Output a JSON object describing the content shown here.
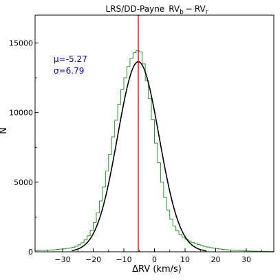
{
  "chart_data": {
    "type": "histogram",
    "title_parts": {
      "main": "LRS/DD-Payne",
      "term1": "RV",
      "term1_sub": "b",
      "minus": "−",
      "term2": "RV",
      "term2_sub": "r"
    },
    "xlabel": "ΔRV (km/s)",
    "ylabel": "N",
    "xlim": [
      -39,
      39
    ],
    "ylim": [
      0,
      17000
    ],
    "xticks": [
      -30,
      -20,
      -10,
      0,
      10,
      20,
      30
    ],
    "xtick_labels": [
      "−30",
      "−20",
      "−10",
      "0",
      "10",
      "20",
      "30"
    ],
    "yticks": [
      0,
      5000,
      10000,
      15000
    ],
    "ytick_labels": [
      "0",
      "5000",
      "10000",
      "15000"
    ],
    "histogram": {
      "color": "#2a9a2a",
      "bin_width": 1,
      "bin_edges_start": -39,
      "counts": [
        80,
        90,
        100,
        110,
        120,
        130,
        150,
        170,
        190,
        210,
        240,
        280,
        330,
        400,
        500,
        650,
        850,
        1150,
        1550,
        2100,
        2800,
        3650,
        4650,
        5800,
        7000,
        8250,
        9450,
        10600,
        11650,
        12500,
        13300,
        13900,
        14300,
        14450,
        14350,
        13500,
        12300,
        11000,
        9500,
        7800,
        6400,
        5000,
        3900,
        3000,
        2350,
        1850,
        1500,
        1250,
        1050,
        900,
        780,
        680,
        600,
        520,
        450,
        390,
        340,
        300,
        260,
        230,
        200,
        175,
        150,
        130,
        115,
        100,
        90,
        80,
        70,
        60,
        55,
        50,
        45,
        40,
        36,
        32,
        28,
        25
      ]
    },
    "gaussian_fit": {
      "color": "#000000",
      "mu": -5.27,
      "sigma": 6.79,
      "amplitude": 13650
    },
    "vertical_line": {
      "x": -5.27,
      "color": "#dd0000"
    },
    "annotations": {
      "mu_label": "μ=-5.27",
      "sigma_label": "σ=6.79",
      "color": "#0000dd"
    },
    "grid": false,
    "legend": "none"
  }
}
